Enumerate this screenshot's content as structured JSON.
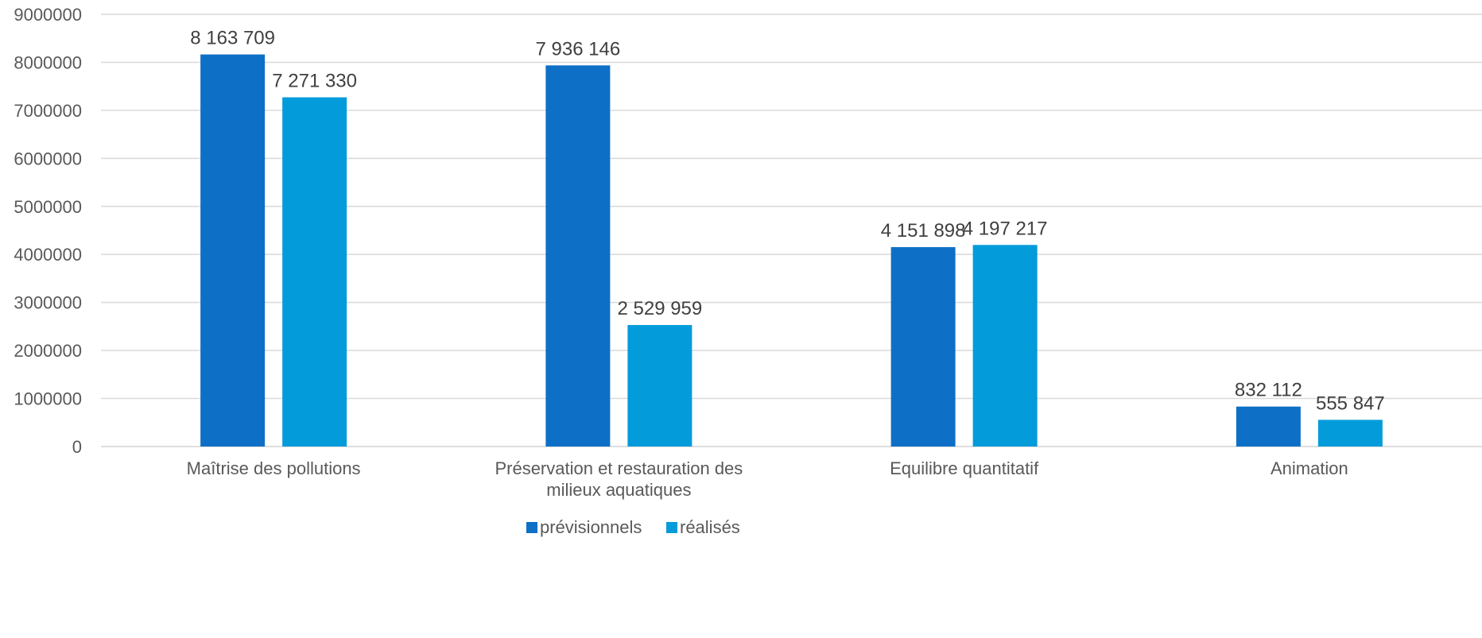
{
  "chart_data": {
    "type": "bar",
    "categories": [
      [
        "Maîtrise des pollutions"
      ],
      [
        "Préservation et restauration des",
        "milieux aquatiques"
      ],
      [
        "Equilibre quantitatif"
      ],
      [
        "Animation"
      ]
    ],
    "series": [
      {
        "name": "prévisionnels",
        "color": "#0E6FC6",
        "values": [
          8163709,
          7936146,
          4151898,
          832112
        ],
        "labels": [
          "8 163 709",
          "7 936 146",
          "4 151 898",
          "832 112"
        ]
      },
      {
        "name": "réalisés",
        "color": "#039BDA",
        "values": [
          7271330,
          2529959,
          4197217,
          555847
        ],
        "labels": [
          "7 271 330",
          "2 529 959",
          "4 197 217",
          "555 847"
        ]
      }
    ],
    "ylim": [
      0,
      9000000
    ],
    "yticks": [
      "0",
      "1000000",
      "2000000",
      "3000000",
      "4000000",
      "5000000",
      "6000000",
      "7000000",
      "8000000",
      "9000000"
    ],
    "grid": true,
    "legend_position": "bottom"
  }
}
